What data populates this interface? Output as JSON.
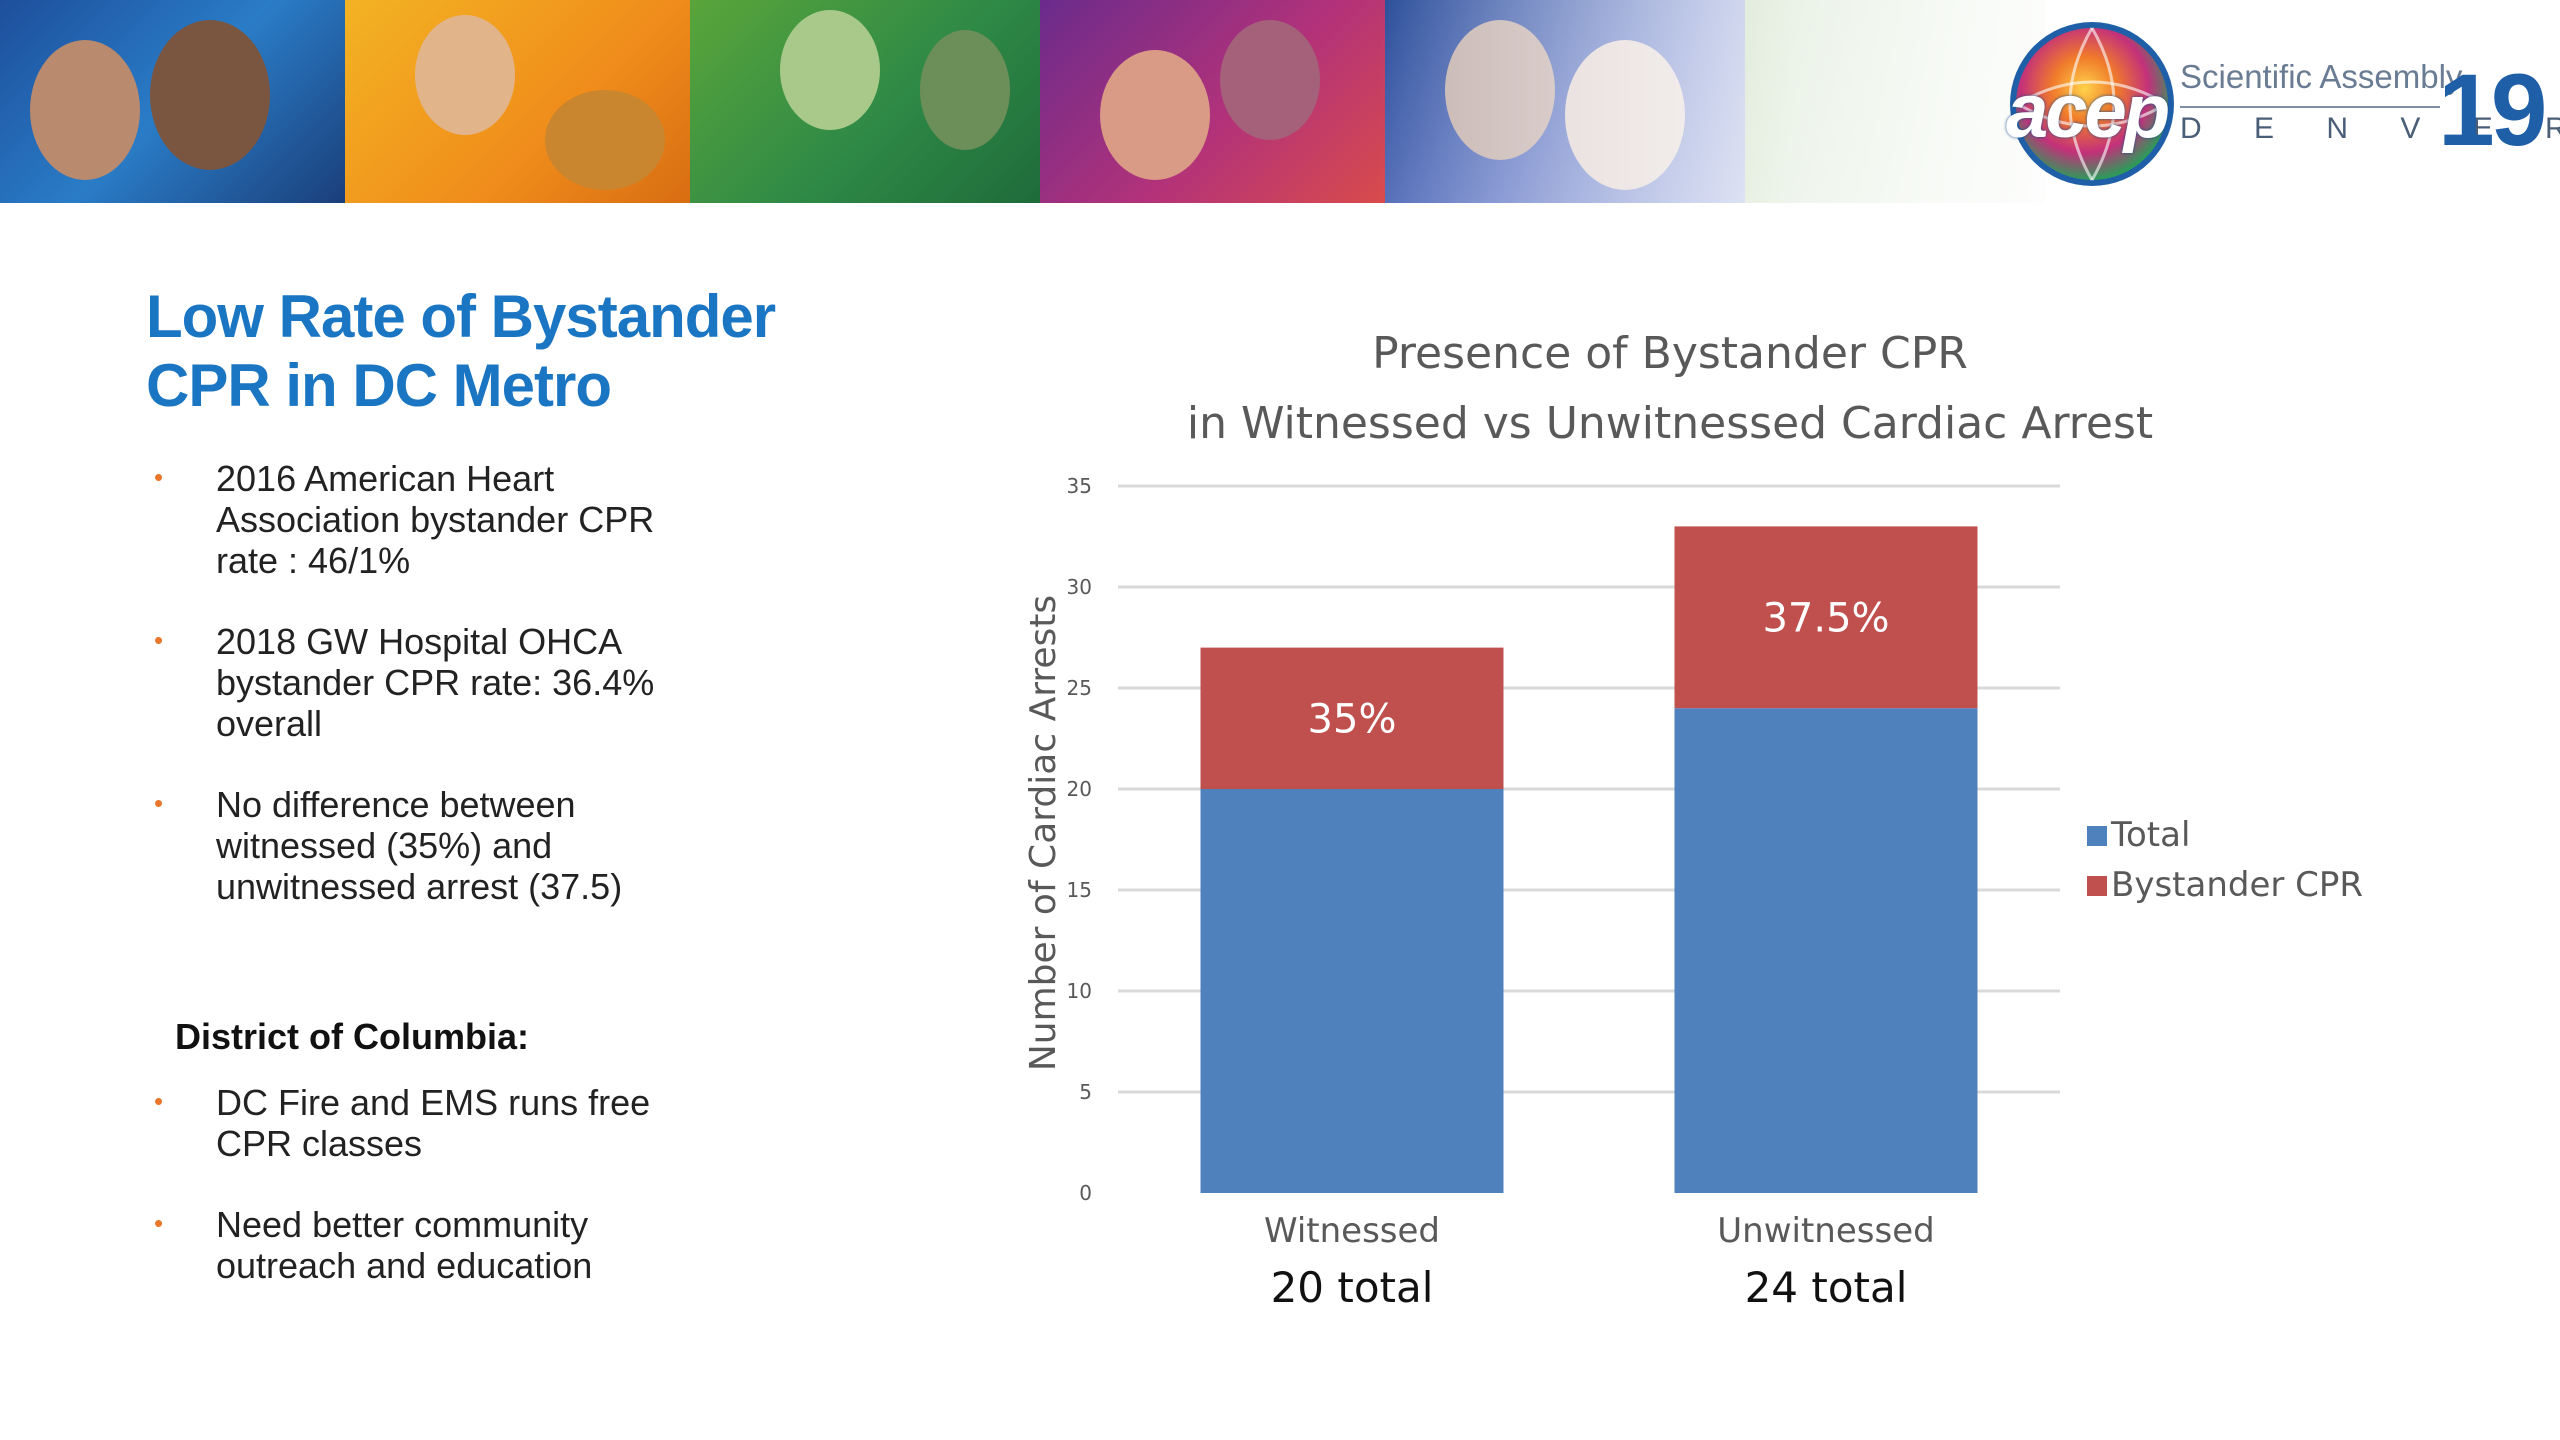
{
  "logo": {
    "brand": "acep",
    "line1": "Scientific Assembly",
    "line2": "D E N V E R",
    "year": "19"
  },
  "slide": {
    "title_line1": "Low Rate of Bystander",
    "title_line2": "CPR in DC Metro",
    "bullets_main": [
      "2016 American Heart Association bystander CPR rate : 46/1%",
      "2018 GW Hospital OHCA bystander CPR rate: 36.4% overall",
      "No difference between witnessed (35%) and unwitnessed arrest (37.5)"
    ],
    "subhead": "District of Columbia:",
    "bullets_dc": [
      "DC Fire and EMS runs free CPR classes",
      "Need better community outreach and education"
    ]
  },
  "colors": {
    "title": "#1a75c2",
    "bullet": "#e8762b",
    "total": "#4f81bd",
    "bystander": "#c0504d"
  },
  "chart_data": {
    "type": "bar",
    "stacked": true,
    "title_line1": "Presence of Bystander CPR",
    "title_line2": "in Witnessed vs Unwitnessed Cardiac Arrest",
    "ylabel": "Number of Cardiac Arrests",
    "ylim": [
      0,
      35
    ],
    "yticks": [
      "0",
      "5",
      "10",
      "15",
      "20",
      "25",
      "30",
      "35"
    ],
    "grid": true,
    "legend_position": "right",
    "categories": [
      "Witnessed",
      "Unwitnessed"
    ],
    "category_totals": [
      "20 total",
      "24 total"
    ],
    "series": [
      {
        "name": "Total",
        "color": "#4f81bd",
        "values": [
          20,
          24
        ]
      },
      {
        "name": "Bystander CPR",
        "color": "#c0504d",
        "values": [
          7,
          9
        ]
      }
    ],
    "data_labels": [
      "35%",
      "37.5%"
    ]
  }
}
